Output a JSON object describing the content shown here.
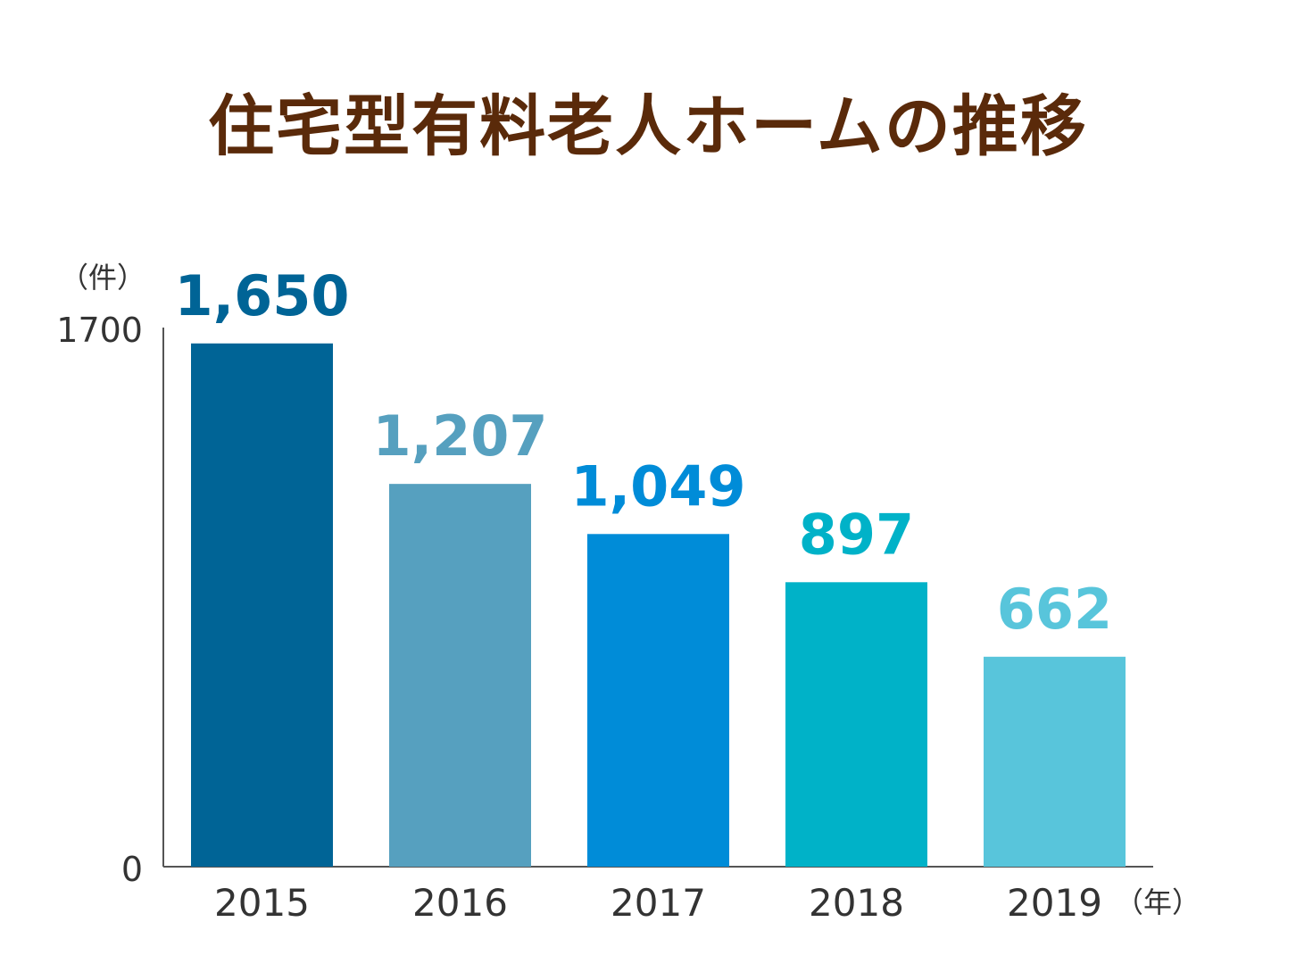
{
  "chart_data": {
    "type": "bar",
    "title": "住宅型有料老人ホームの推移",
    "y_unit": "（件）",
    "x_unit": "（年）",
    "categories": [
      "2015",
      "2016",
      "2017",
      "2018",
      "2019"
    ],
    "values": [
      1650,
      1207,
      1049,
      897,
      662
    ],
    "value_labels": [
      "1,650",
      "1,207",
      "1,049",
      "897",
      "662"
    ],
    "ylim": [
      0,
      1700
    ],
    "y_ticks": [
      "0",
      "1700"
    ],
    "grid": false,
    "legend": "none",
    "colors": [
      "#006496",
      "#56a0bf",
      "#008cd8",
      "#00b2c8",
      "#58c5db"
    ]
  }
}
